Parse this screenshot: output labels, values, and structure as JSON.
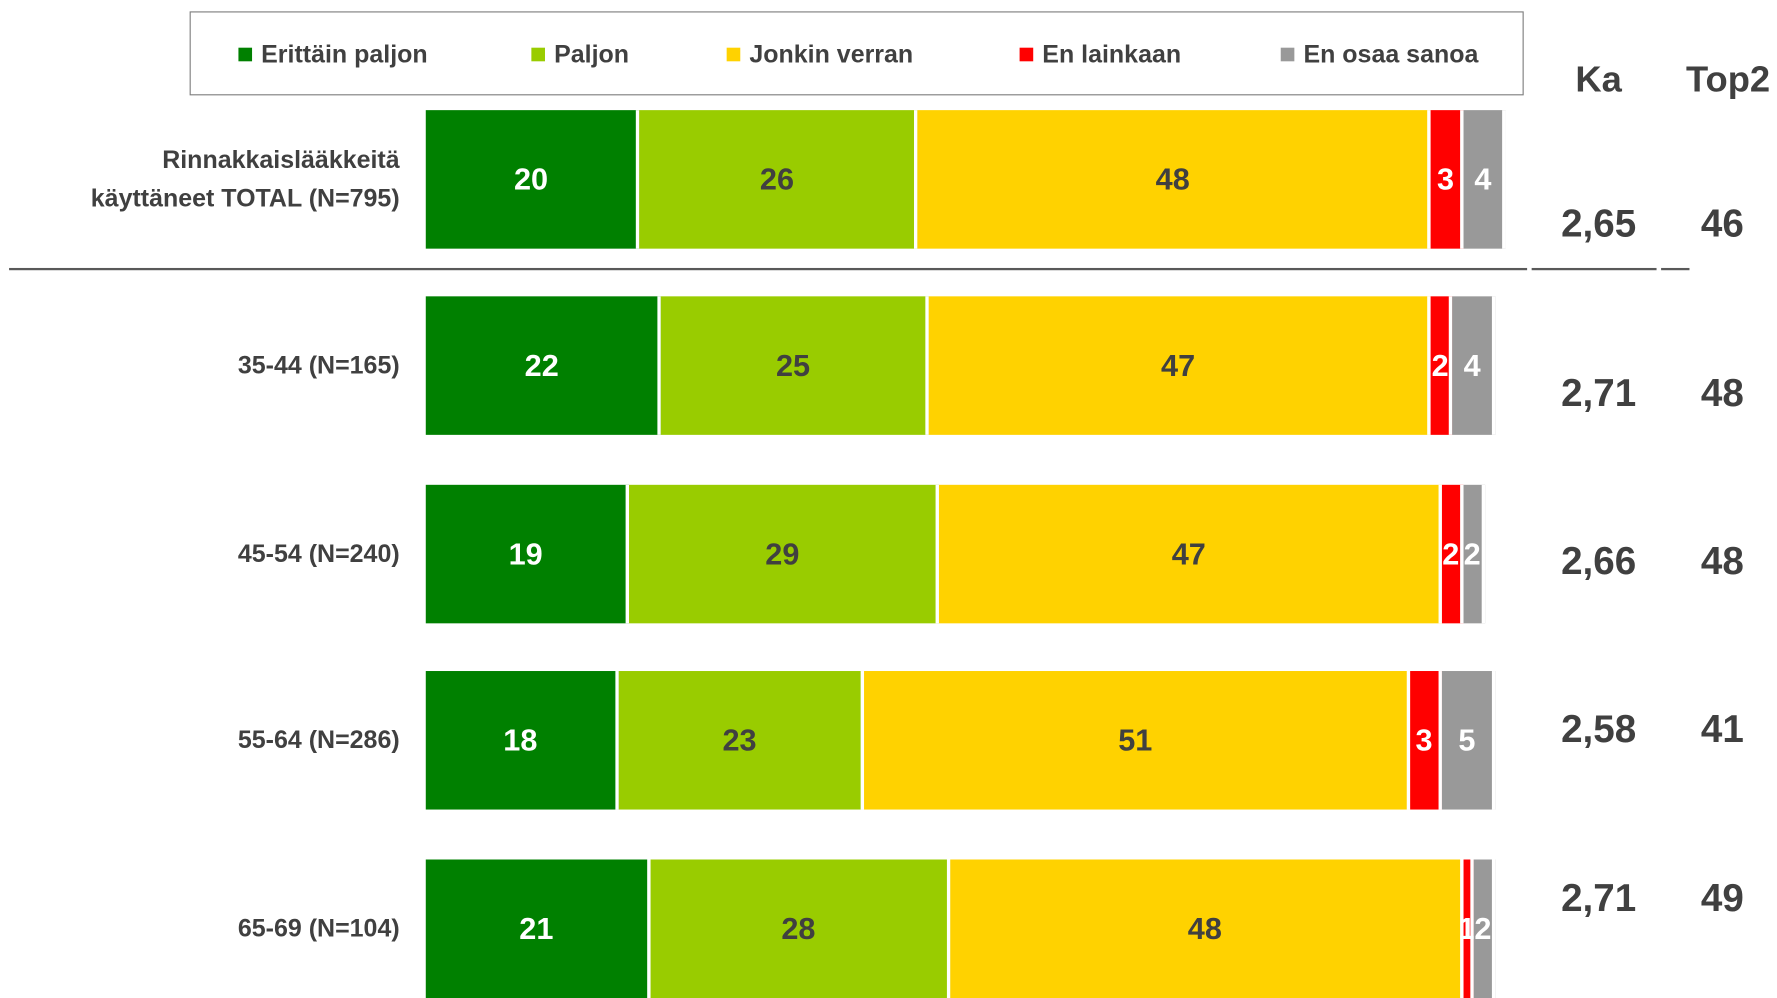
{
  "chart_data": {
    "type": "bar",
    "orientation": "horizontal",
    "stacked": true,
    "categories": [
      "Rinnakkaislääkkeitä käyttäneet TOTAL (N=795)",
      "35-44 (N=165)",
      "45-54 (N=240)",
      "55-64 (N=286)",
      "65-69 (N=104)"
    ],
    "series": [
      {
        "name": "Erittäin paljon",
        "color": "#008000",
        "label_color": "#ffffff",
        "values": [
          20,
          22,
          19,
          18,
          21
        ]
      },
      {
        "name": "Paljon",
        "color": "#99cc00",
        "label_color": "#404040",
        "values": [
          26,
          25,
          29,
          23,
          28
        ]
      },
      {
        "name": "Jonkin verran",
        "color": "#ffd200",
        "label_color": "#404040",
        "values": [
          48,
          47,
          47,
          51,
          48
        ]
      },
      {
        "name": "En lainkaan",
        "color": "#ff0000",
        "label_color": "#ffffff",
        "values": [
          3,
          2,
          2,
          3,
          1
        ]
      },
      {
        "name": "En osaa sanoa",
        "color": "#999999",
        "label_color": "#ffffff",
        "values": [
          4,
          4,
          2,
          5,
          2
        ]
      }
    ],
    "ka": {
      "header": "Ka",
      "values": [
        2.65,
        2.71,
        2.66,
        2.58,
        2.71
      ],
      "value_labels": [
        "2,65",
        "2,71",
        "2,66",
        "2,58",
        "2,71"
      ]
    },
    "top2": {
      "header": "Top2",
      "values": [
        46,
        48,
        48,
        41,
        49
      ]
    }
  }
}
